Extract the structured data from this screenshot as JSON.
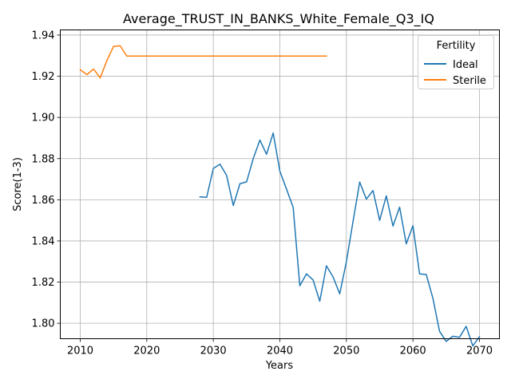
{
  "chart_data": {
    "type": "line",
    "title": "Average_TRUST_IN_BANKS_White_Female_Q3_IQ",
    "xlabel": "Years",
    "ylabel": "Score(1-3)",
    "xlim": [
      2007,
      2073
    ],
    "ylim": [
      1.7925,
      1.9425
    ],
    "xticks": [
      2010,
      2020,
      2030,
      2040,
      2050,
      2060,
      2070
    ],
    "yticks": [
      1.8,
      1.82,
      1.84,
      1.86,
      1.88,
      1.9,
      1.92,
      1.94
    ],
    "ytick_labels": [
      "1.80",
      "1.82",
      "1.84",
      "1.86",
      "1.88",
      "1.90",
      "1.92",
      "1.94"
    ],
    "grid": true,
    "legend": {
      "title": "Fertility",
      "placement": "top-right"
    },
    "series": [
      {
        "name": "Ideal",
        "color": "#1f77b4",
        "x": [
          2028,
          2029,
          2030,
          2031,
          2032,
          2033,
          2034,
          2035,
          2036,
          2037,
          2038,
          2039,
          2040,
          2041,
          2042,
          2043,
          2044,
          2045,
          2046,
          2047,
          2048,
          2049,
          2050,
          2051,
          2052,
          2053,
          2054,
          2055,
          2056,
          2057,
          2058,
          2059,
          2060,
          2061,
          2062,
          2063,
          2064,
          2065,
          2066,
          2067,
          2068,
          2069,
          2070
        ],
        "y": [
          1.8614,
          1.8612,
          1.8752,
          1.8773,
          1.8718,
          1.8572,
          1.8678,
          1.8687,
          1.88,
          1.889,
          1.8821,
          1.8924,
          1.8739,
          1.8652,
          1.8563,
          1.8182,
          1.824,
          1.821,
          1.8107,
          1.8279,
          1.8225,
          1.8143,
          1.8299,
          1.8495,
          1.8686,
          1.8603,
          1.8645,
          1.85,
          1.8619,
          1.8472,
          1.8564,
          1.8386,
          1.8474,
          1.824,
          1.8237,
          1.8122,
          1.7961,
          1.7912,
          1.7937,
          1.7932,
          1.7985,
          1.789,
          1.7935
        ]
      },
      {
        "name": "Sterile",
        "color": "#ff7f0e",
        "x": [
          2010,
          2011,
          2012,
          2013,
          2014,
          2015,
          2016,
          2017,
          2018,
          2019,
          2020,
          2021,
          2022,
          2023,
          2024,
          2025,
          2026,
          2027,
          2028,
          2029,
          2030,
          2031,
          2032,
          2033,
          2034,
          2035,
          2036,
          2037,
          2038,
          2039,
          2040,
          2041,
          2042,
          2043,
          2044,
          2045,
          2046,
          2047
        ],
        "y": [
          1.9232,
          1.9208,
          1.9235,
          1.9192,
          1.9276,
          1.9345,
          1.9348,
          1.9298,
          1.9298,
          1.9298,
          1.9298,
          1.9298,
          1.9298,
          1.9298,
          1.9298,
          1.9298,
          1.9298,
          1.9298,
          1.9298,
          1.9298,
          1.9298,
          1.9298,
          1.9298,
          1.9298,
          1.9298,
          1.9298,
          1.9298,
          1.9298,
          1.9298,
          1.9298,
          1.9298,
          1.9298,
          1.9298,
          1.9298,
          1.9298,
          1.9298,
          1.9298,
          1.9298
        ]
      }
    ]
  }
}
